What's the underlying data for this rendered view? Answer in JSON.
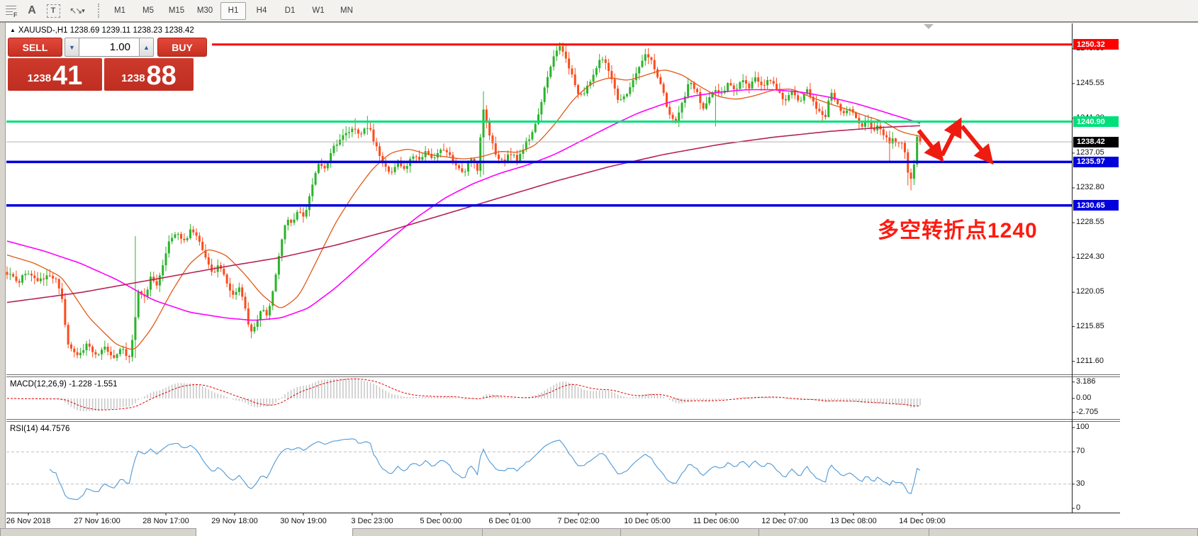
{
  "toolbar": {
    "tools": [
      {
        "name": "fibonacci-tool",
        "glyph": "F"
      },
      {
        "name": "text-tool",
        "glyph": "A"
      },
      {
        "name": "text-label-tool",
        "glyph": "T"
      },
      {
        "name": "arrows-tool",
        "glyph": "↖↘"
      }
    ],
    "dropdown_caret": "▾",
    "timeframes": [
      "M1",
      "M5",
      "M15",
      "M30",
      "H1",
      "H4",
      "D1",
      "W1",
      "MN"
    ],
    "active_timeframe": "H1"
  },
  "chart": {
    "symbol_marker": "▲",
    "symbol_line": "XAUUSD-,H1  1238.69 1239.11 1238.23 1238.42",
    "trade_panel": {
      "sell_label": "SELL",
      "buy_label": "BUY",
      "volume": "1.00",
      "spin_down": "▼",
      "spin_up": "▲",
      "sell_price": {
        "small": "1238",
        "big": "41"
      },
      "buy_price": {
        "small": "1238",
        "big": "88"
      }
    },
    "annotation": {
      "text": "多空转折点1240",
      "color": "#fe1b10"
    }
  },
  "chart_data": {
    "type": "candlestick",
    "symbol": "XAUUSD-",
    "timeframe": "H1",
    "ohlc": {
      "open": 1238.69,
      "high": 1239.11,
      "low": 1238.23,
      "close": 1238.42
    },
    "bars": 300,
    "ylim": [
      1210.1,
      1252.9
    ],
    "y_ticks": [
      "1249.80",
      "1245.55",
      "1241.30",
      "1237.05",
      "1232.80",
      "1228.55",
      "1224.30",
      "1220.05",
      "1215.85",
      "1211.60"
    ],
    "y_tick_values": [
      1249.8,
      1245.55,
      1241.3,
      1237.05,
      1232.8,
      1228.55,
      1224.3,
      1220.05,
      1215.85,
      1211.6
    ],
    "x_labels": [
      "26 Nov 2018",
      "27 Nov 16:00",
      "28 Nov 17:00",
      "29 Nov 18:00",
      "30 Nov 19:00",
      "3 Dec 23:00",
      "5 Dec 00:00",
      "6 Dec 01:00",
      "7 Dec 02:00",
      "10 Dec 05:00",
      "11 Dec 06:00",
      "12 Dec 07:00",
      "13 Dec 08:00",
      "14 Dec 09:00"
    ],
    "candle_colors": {
      "up": "#2bb32b",
      "down": "#fd4b1c"
    },
    "levels": [
      {
        "price": 1250.32,
        "label": "1250.32",
        "color": "#ff0000",
        "width": 3
      },
      {
        "price": 1240.9,
        "label": "1240.90",
        "color": "#00df7a",
        "width": 3
      },
      {
        "price": 1235.97,
        "label": "1235.97",
        "color": "#0100dc",
        "width": 3.5
      },
      {
        "price": 1230.65,
        "label": "1230.65",
        "color": "#0100dc",
        "width": 3.5
      }
    ],
    "current_price": {
      "price": 1238.42,
      "label": "1238.42",
      "line_color": "#b2b2b2",
      "badge_color": "#000000"
    },
    "price_path_anchors": [
      [
        0.0,
        1222.4
      ],
      [
        0.012,
        1221.3
      ],
      [
        0.023,
        1222.6
      ],
      [
        0.034,
        1221.2
      ],
      [
        0.045,
        1222.4
      ],
      [
        0.054,
        1221.4
      ],
      [
        0.06,
        1219.2
      ],
      [
        0.066,
        1213.6
      ],
      [
        0.078,
        1212.4
      ],
      [
        0.088,
        1213.8
      ],
      [
        0.097,
        1212.2
      ],
      [
        0.107,
        1213.4
      ],
      [
        0.116,
        1212.0
      ],
      [
        0.126,
        1213.6
      ],
      [
        0.133,
        1211.9
      ],
      [
        0.139,
        1215.5
      ],
      [
        0.144,
        1220.3
      ],
      [
        0.15,
        1219.2
      ],
      [
        0.157,
        1221.8
      ],
      [
        0.163,
        1220.8
      ],
      [
        0.171,
        1223.5
      ],
      [
        0.178,
        1226.3
      ],
      [
        0.186,
        1227.3
      ],
      [
        0.194,
        1226.2
      ],
      [
        0.202,
        1227.8
      ],
      [
        0.21,
        1226.4
      ],
      [
        0.217,
        1224.2
      ],
      [
        0.225,
        1222.2
      ],
      [
        0.231,
        1223.6
      ],
      [
        0.239,
        1221.6
      ],
      [
        0.247,
        1219.6
      ],
      [
        0.254,
        1220.6
      ],
      [
        0.261,
        1218.0
      ],
      [
        0.267,
        1214.9
      ],
      [
        0.273,
        1216.6
      ],
      [
        0.279,
        1218.1
      ],
      [
        0.285,
        1217.3
      ],
      [
        0.291,
        1220.0
      ],
      [
        0.298,
        1225.0
      ],
      [
        0.306,
        1229.3
      ],
      [
        0.312,
        1228.2
      ],
      [
        0.318,
        1230.1
      ],
      [
        0.325,
        1229.2
      ],
      [
        0.333,
        1232.3
      ],
      [
        0.341,
        1235.8
      ],
      [
        0.349,
        1235.2
      ],
      [
        0.357,
        1237.6
      ],
      [
        0.365,
        1238.6
      ],
      [
        0.372,
        1239.6
      ],
      [
        0.38,
        1240.3
      ],
      [
        0.388,
        1239.2
      ],
      [
        0.396,
        1240.6
      ],
      [
        0.404,
        1237.8
      ],
      [
        0.412,
        1235.6
      ],
      [
        0.42,
        1234.3
      ],
      [
        0.428,
        1235.9
      ],
      [
        0.436,
        1235.1
      ],
      [
        0.444,
        1236.9
      ],
      [
        0.452,
        1236.1
      ],
      [
        0.46,
        1237.3
      ],
      [
        0.468,
        1236.3
      ],
      [
        0.476,
        1237.9
      ],
      [
        0.484,
        1236.9
      ],
      [
        0.492,
        1235.3
      ],
      [
        0.5,
        1234.4
      ],
      [
        0.508,
        1236.6
      ],
      [
        0.516,
        1234.9
      ],
      [
        0.521,
        1243.0
      ],
      [
        0.527,
        1240.0
      ],
      [
        0.535,
        1237.1
      ],
      [
        0.543,
        1235.9
      ],
      [
        0.551,
        1237.1
      ],
      [
        0.559,
        1236.3
      ],
      [
        0.567,
        1238.1
      ],
      [
        0.575,
        1239.3
      ],
      [
        0.583,
        1242.2
      ],
      [
        0.59,
        1245.7
      ],
      [
        0.598,
        1248.6
      ],
      [
        0.605,
        1250.1
      ],
      [
        0.611,
        1249.1
      ],
      [
        0.617,
        1247.1
      ],
      [
        0.624,
        1244.7
      ],
      [
        0.63,
        1243.9
      ],
      [
        0.637,
        1245.6
      ],
      [
        0.644,
        1247.1
      ],
      [
        0.651,
        1248.9
      ],
      [
        0.658,
        1247.6
      ],
      [
        0.664,
        1245.2
      ],
      [
        0.67,
        1243.2
      ],
      [
        0.677,
        1244.1
      ],
      [
        0.684,
        1245.6
      ],
      [
        0.691,
        1247.1
      ],
      [
        0.698,
        1249.2
      ],
      [
        0.705,
        1248.6
      ],
      [
        0.712,
        1246.6
      ],
      [
        0.719,
        1244.2
      ],
      [
        0.725,
        1241.9
      ],
      [
        0.732,
        1241.1
      ],
      [
        0.739,
        1243.1
      ],
      [
        0.748,
        1245.9
      ],
      [
        0.755,
        1244.6
      ],
      [
        0.762,
        1242.3
      ],
      [
        0.769,
        1243.6
      ],
      [
        0.776,
        1244.9
      ],
      [
        0.783,
        1244.1
      ],
      [
        0.79,
        1245.6
      ],
      [
        0.797,
        1244.6
      ],
      [
        0.805,
        1246.1
      ],
      [
        0.812,
        1245.1
      ],
      [
        0.82,
        1246.4
      ],
      [
        0.828,
        1245.3
      ],
      [
        0.836,
        1246.1
      ],
      [
        0.844,
        1244.8
      ],
      [
        0.852,
        1243.4
      ],
      [
        0.86,
        1244.6
      ],
      [
        0.868,
        1243.2
      ],
      [
        0.876,
        1244.7
      ],
      [
        0.884,
        1243.0
      ],
      [
        0.891,
        1241.8
      ],
      [
        0.897,
        1241.5
      ],
      [
        0.901,
        1244.8
      ],
      [
        0.906,
        1243.6
      ],
      [
        0.912,
        1242.5
      ],
      [
        0.918,
        1241.8
      ],
      [
        0.924,
        1242.7
      ],
      [
        0.93,
        1241.1
      ],
      [
        0.936,
        1240.1
      ],
      [
        0.942,
        1241.2
      ],
      [
        0.948,
        1239.8
      ],
      [
        0.954,
        1240.7
      ],
      [
        0.96,
        1239.3
      ],
      [
        0.966,
        1238.2
      ],
      [
        0.97,
        1238.9
      ],
      [
        0.975,
        1238.0
      ],
      [
        0.979,
        1238.7
      ],
      [
        0.983,
        1237.2
      ],
      [
        0.987,
        1234.5
      ],
      [
        0.99,
        1233.8
      ],
      [
        0.993,
        1235.4
      ],
      [
        0.996,
        1239.0
      ],
      [
        1.0,
        1238.42
      ]
    ],
    "wick_overrides": [
      {
        "f": 0.133,
        "low": 1211.4
      },
      {
        "f": 0.139,
        "high": 1226.9,
        "low": 1212.0
      },
      {
        "f": 0.38,
        "high": 1241.3
      },
      {
        "f": 0.396,
        "high": 1241.6
      },
      {
        "f": 0.521,
        "high": 1244.6,
        "low": 1234.4
      },
      {
        "f": 0.605,
        "high": 1250.6
      },
      {
        "f": 0.611,
        "high": 1250.4
      },
      {
        "f": 0.698,
        "high": 1249.8
      },
      {
        "f": 0.776,
        "low": 1240.3
      },
      {
        "f": 0.966,
        "low": 1235.9
      },
      {
        "f": 0.987,
        "low": 1233.1
      },
      {
        "f": 0.99,
        "low": 1232.5
      }
    ],
    "moving_averages": [
      {
        "name": "ma-fast",
        "color": "#e05a18",
        "width": 1.3,
        "points": [
          [
            0.0,
            1224.6
          ],
          [
            0.03,
            1223.6
          ],
          [
            0.06,
            1221.9
          ],
          [
            0.09,
            1216.9
          ],
          [
            0.12,
            1213.6
          ],
          [
            0.14,
            1212.9
          ],
          [
            0.16,
            1215.9
          ],
          [
            0.18,
            1220.1
          ],
          [
            0.2,
            1223.6
          ],
          [
            0.22,
            1225.4
          ],
          [
            0.24,
            1224.6
          ],
          [
            0.26,
            1222.3
          ],
          [
            0.28,
            1219.6
          ],
          [
            0.3,
            1217.9
          ],
          [
            0.32,
            1219.6
          ],
          [
            0.34,
            1224.1
          ],
          [
            0.36,
            1228.6
          ],
          [
            0.38,
            1232.1
          ],
          [
            0.4,
            1235.1
          ],
          [
            0.42,
            1237.1
          ],
          [
            0.44,
            1237.6
          ],
          [
            0.46,
            1236.9
          ],
          [
            0.48,
            1236.6
          ],
          [
            0.5,
            1236.3
          ],
          [
            0.52,
            1236.6
          ],
          [
            0.54,
            1237.3
          ],
          [
            0.56,
            1237.1
          ],
          [
            0.58,
            1238.1
          ],
          [
            0.6,
            1240.6
          ],
          [
            0.62,
            1243.6
          ],
          [
            0.64,
            1245.6
          ],
          [
            0.66,
            1246.3
          ],
          [
            0.68,
            1245.9
          ],
          [
            0.7,
            1246.6
          ],
          [
            0.72,
            1247.3
          ],
          [
            0.74,
            1246.6
          ],
          [
            0.76,
            1245.1
          ],
          [
            0.78,
            1243.9
          ],
          [
            0.8,
            1243.6
          ],
          [
            0.82,
            1244.1
          ],
          [
            0.84,
            1244.8
          ],
          [
            0.86,
            1244.9
          ],
          [
            0.88,
            1243.9
          ],
          [
            0.9,
            1243.1
          ],
          [
            0.92,
            1242.4
          ],
          [
            0.94,
            1241.6
          ],
          [
            0.96,
            1240.9
          ],
          [
            0.98,
            1239.6
          ],
          [
            1.0,
            1239.1
          ]
        ]
      },
      {
        "name": "ma-mid",
        "color": "#ff00ff",
        "width": 1.6,
        "points": [
          [
            0.0,
            1226.3
          ],
          [
            0.04,
            1225.1
          ],
          [
            0.08,
            1223.6
          ],
          [
            0.12,
            1221.6
          ],
          [
            0.16,
            1219.1
          ],
          [
            0.2,
            1217.6
          ],
          [
            0.24,
            1216.9
          ],
          [
            0.27,
            1216.6
          ],
          [
            0.3,
            1216.9
          ],
          [
            0.33,
            1218.1
          ],
          [
            0.36,
            1220.6
          ],
          [
            0.39,
            1223.6
          ],
          [
            0.42,
            1226.6
          ],
          [
            0.45,
            1229.3
          ],
          [
            0.48,
            1231.6
          ],
          [
            0.51,
            1233.3
          ],
          [
            0.54,
            1234.6
          ],
          [
            0.57,
            1235.6
          ],
          [
            0.6,
            1236.9
          ],
          [
            0.63,
            1238.6
          ],
          [
            0.66,
            1240.3
          ],
          [
            0.69,
            1241.9
          ],
          [
            0.72,
            1243.1
          ],
          [
            0.75,
            1244.0
          ],
          [
            0.78,
            1244.5
          ],
          [
            0.81,
            1244.8
          ],
          [
            0.84,
            1244.8
          ],
          [
            0.87,
            1244.5
          ],
          [
            0.9,
            1243.9
          ],
          [
            0.93,
            1243.1
          ],
          [
            0.96,
            1242.1
          ],
          [
            1.0,
            1240.7
          ]
        ]
      },
      {
        "name": "ma-slow",
        "color": "#b5235a",
        "width": 1.6,
        "points": [
          [
            0.0,
            1218.8
          ],
          [
            0.08,
            1220.0
          ],
          [
            0.16,
            1221.6
          ],
          [
            0.24,
            1223.2
          ],
          [
            0.3,
            1224.3
          ],
          [
            0.36,
            1225.8
          ],
          [
            0.42,
            1227.6
          ],
          [
            0.48,
            1229.6
          ],
          [
            0.54,
            1231.6
          ],
          [
            0.6,
            1233.6
          ],
          [
            0.66,
            1235.4
          ],
          [
            0.72,
            1236.9
          ],
          [
            0.78,
            1238.1
          ],
          [
            0.84,
            1239.0
          ],
          [
            0.9,
            1239.7
          ],
          [
            0.96,
            1240.2
          ],
          [
            1.0,
            1240.4
          ]
        ]
      }
    ],
    "macd": {
      "display": "MACD(12,26,9) -1.228 -1.551",
      "macd_value": -1.228,
      "signal_value": -1.551,
      "axis_ticks": [
        "3.186",
        "0.00",
        "-2.705"
      ],
      "axis_values": [
        3.186,
        0.0,
        -2.705
      ],
      "histogram_color": "#c9c9c9",
      "signal_color": "#e00000"
    },
    "rsi": {
      "display": "RSI(14) 44.7576",
      "value": 44.7576,
      "axis_ticks": [
        "100",
        "70",
        "30",
        "0"
      ],
      "axis_values": [
        100,
        70,
        30,
        0
      ],
      "levels": [
        70,
        30
      ],
      "level_color": "#bdbdbd",
      "line_color": "#4f99d6"
    },
    "drawn_arrows": {
      "color": "#ee1b10",
      "segments": [
        {
          "from": [
            1296,
            184
          ],
          "to": [
            1324,
            219
          ]
        },
        {
          "from": [
            1329,
            219
          ],
          "to": [
            1351,
            176
          ]
        },
        {
          "from": [
            1357,
            178
          ],
          "to": [
            1394,
            223
          ]
        }
      ]
    }
  }
}
